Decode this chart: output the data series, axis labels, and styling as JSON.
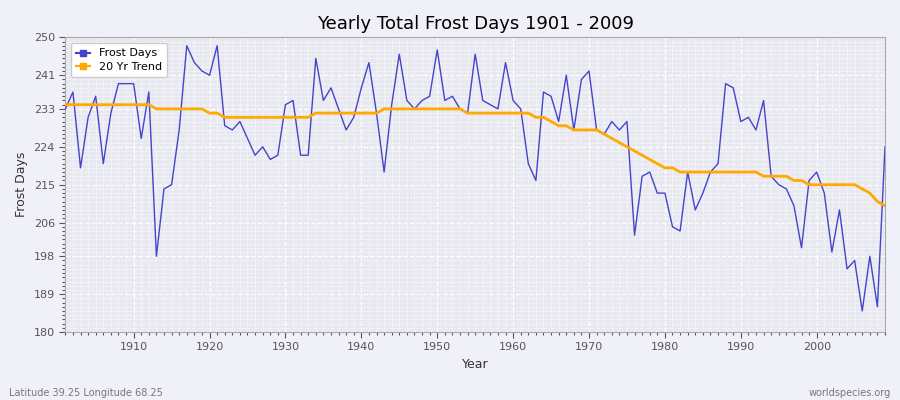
{
  "title": "Yearly Total Frost Days 1901 - 2009",
  "xlabel": "Year",
  "ylabel": "Frost Days",
  "subtitle": "Latitude 39.25 Longitude 68.25",
  "watermark": "worldspecies.org",
  "fig_bg_color": "#f0f0f8",
  "plot_bg_color": "#e8e8f0",
  "line_color": "#4444cc",
  "trend_color": "#ffaa00",
  "ylim": [
    180,
    250
  ],
  "yticks": [
    180,
    189,
    198,
    206,
    215,
    224,
    233,
    241,
    250
  ],
  "xlim": [
    1901,
    2009
  ],
  "xticks": [
    1910,
    1920,
    1930,
    1940,
    1950,
    1960,
    1970,
    1980,
    1990,
    2000
  ],
  "frost_days": {
    "1901": 233,
    "1902": 237,
    "1903": 219,
    "1904": 231,
    "1905": 236,
    "1906": 220,
    "1907": 232,
    "1908": 239,
    "1909": 239,
    "1910": 239,
    "1911": 226,
    "1912": 237,
    "1913": 198,
    "1914": 214,
    "1915": 215,
    "1916": 228,
    "1917": 248,
    "1918": 244,
    "1919": 242,
    "1920": 241,
    "1921": 248,
    "1922": 229,
    "1923": 228,
    "1924": 230,
    "1925": 226,
    "1926": 222,
    "1927": 224,
    "1928": 221,
    "1929": 222,
    "1930": 234,
    "1931": 235,
    "1932": 222,
    "1933": 222,
    "1934": 245,
    "1935": 235,
    "1936": 238,
    "1937": 233,
    "1938": 228,
    "1939": 231,
    "1940": 238,
    "1941": 244,
    "1942": 232,
    "1943": 218,
    "1944": 234,
    "1945": 246,
    "1946": 235,
    "1947": 233,
    "1948": 235,
    "1949": 236,
    "1950": 247,
    "1951": 235,
    "1952": 236,
    "1953": 233,
    "1954": 232,
    "1955": 246,
    "1956": 235,
    "1957": 234,
    "1958": 233,
    "1959": 244,
    "1960": 235,
    "1961": 233,
    "1962": 220,
    "1963": 216,
    "1964": 237,
    "1965": 236,
    "1966": 230,
    "1967": 241,
    "1968": 228,
    "1969": 240,
    "1970": 242,
    "1971": 228,
    "1972": 227,
    "1973": 230,
    "1974": 228,
    "1975": 230,
    "1976": 203,
    "1977": 217,
    "1978": 218,
    "1979": 213,
    "1980": 213,
    "1981": 205,
    "1982": 204,
    "1983": 218,
    "1984": 209,
    "1985": 213,
    "1986": 218,
    "1987": 220,
    "1988": 239,
    "1989": 238,
    "1990": 230,
    "1991": 231,
    "1992": 228,
    "1993": 235,
    "1994": 217,
    "1995": 215,
    "1996": 214,
    "1997": 210,
    "1998": 200,
    "1999": 216,
    "2000": 218,
    "2001": 213,
    "2002": 199,
    "2003": 209,
    "2004": 195,
    "2005": 197,
    "2006": 185,
    "2007": 198,
    "2008": 186,
    "2009": 224
  },
  "trend_20yr": {
    "1901": 234,
    "1902": 234,
    "1903": 234,
    "1904": 234,
    "1905": 234,
    "1906": 234,
    "1907": 234,
    "1908": 234,
    "1909": 234,
    "1910": 234,
    "1911": 234,
    "1912": 234,
    "1913": 233,
    "1914": 233,
    "1915": 233,
    "1916": 233,
    "1917": 233,
    "1918": 233,
    "1919": 233,
    "1920": 232,
    "1921": 232,
    "1922": 231,
    "1923": 231,
    "1924": 231,
    "1925": 231,
    "1926": 231,
    "1927": 231,
    "1928": 231,
    "1929": 231,
    "1930": 231,
    "1931": 231,
    "1932": 231,
    "1933": 231,
    "1934": 232,
    "1935": 232,
    "1936": 232,
    "1937": 232,
    "1938": 232,
    "1939": 232,
    "1940": 232,
    "1941": 232,
    "1942": 232,
    "1943": 233,
    "1944": 233,
    "1945": 233,
    "1946": 233,
    "1947": 233,
    "1948": 233,
    "1949": 233,
    "1950": 233,
    "1951": 233,
    "1952": 233,
    "1953": 233,
    "1954": 232,
    "1955": 232,
    "1956": 232,
    "1957": 232,
    "1958": 232,
    "1959": 232,
    "1960": 232,
    "1961": 232,
    "1962": 232,
    "1963": 231,
    "1964": 231,
    "1965": 230,
    "1966": 229,
    "1967": 229,
    "1968": 228,
    "1969": 228,
    "1970": 228,
    "1971": 228,
    "1972": 227,
    "1973": 226,
    "1974": 225,
    "1975": 224,
    "1976": 223,
    "1977": 222,
    "1978": 221,
    "1979": 220,
    "1980": 219,
    "1981": 219,
    "1982": 218,
    "1983": 218,
    "1984": 218,
    "1985": 218,
    "1986": 218,
    "1987": 218,
    "1988": 218,
    "1989": 218,
    "1990": 218,
    "1991": 218,
    "1992": 218,
    "1993": 217,
    "1994": 217,
    "1995": 217,
    "1996": 217,
    "1997": 216,
    "1998": 216,
    "1999": 215,
    "2000": 215,
    "2001": 215,
    "2002": 215,
    "2003": 215,
    "2004": 215,
    "2005": 215,
    "2006": 214,
    "2007": 213,
    "2008": 211,
    "2009": 210
  },
  "legend_frost": "Frost Days",
  "legend_trend": "20 Yr Trend"
}
